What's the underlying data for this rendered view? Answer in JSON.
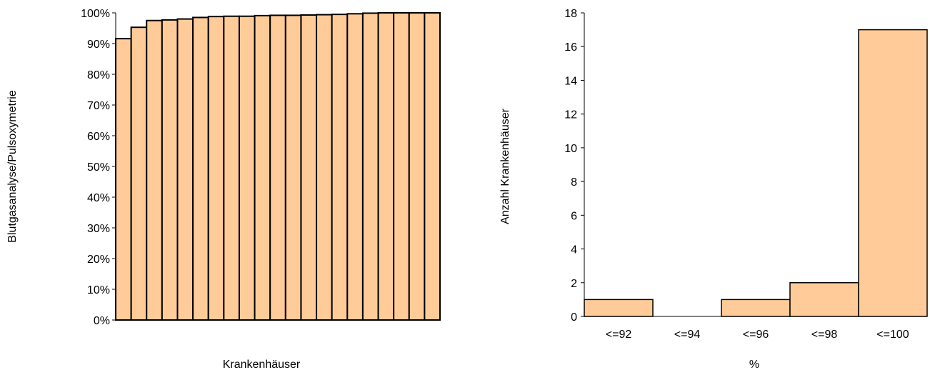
{
  "colors": {
    "bar_fill": "#ffcc99",
    "bar_stroke": "#000000"
  },
  "chart_data": [
    {
      "type": "bar",
      "title": "",
      "xlabel": "Krankenhäuser",
      "ylabel": "Blutgasanalyse/Pulsoxymetrie",
      "ylim": [
        0,
        1
      ],
      "yticks": [
        "0%",
        "10%",
        "20%",
        "30%",
        "40%",
        "50%",
        "60%",
        "70%",
        "80%",
        "90%",
        "100%"
      ],
      "values": [
        0.916,
        0.953,
        0.975,
        0.977,
        0.98,
        0.985,
        0.988,
        0.989,
        0.989,
        0.991,
        0.992,
        0.992,
        0.993,
        0.994,
        0.995,
        0.997,
        0.999,
        1.0,
        1.0,
        1.0,
        1.0
      ],
      "grid": false
    },
    {
      "type": "bar",
      "title": "",
      "xlabel": "%",
      "ylabel": "Anzahl Krankenhäuser",
      "categories": [
        "<=92",
        "<=94",
        "<=96",
        "<=98",
        "<=100"
      ],
      "values": [
        1,
        0,
        1,
        2,
        17
      ],
      "ylim": [
        0,
        18
      ],
      "yticks": [
        "0",
        "2",
        "4",
        "6",
        "8",
        "10",
        "12",
        "14",
        "16",
        "18"
      ],
      "grid": false
    }
  ]
}
